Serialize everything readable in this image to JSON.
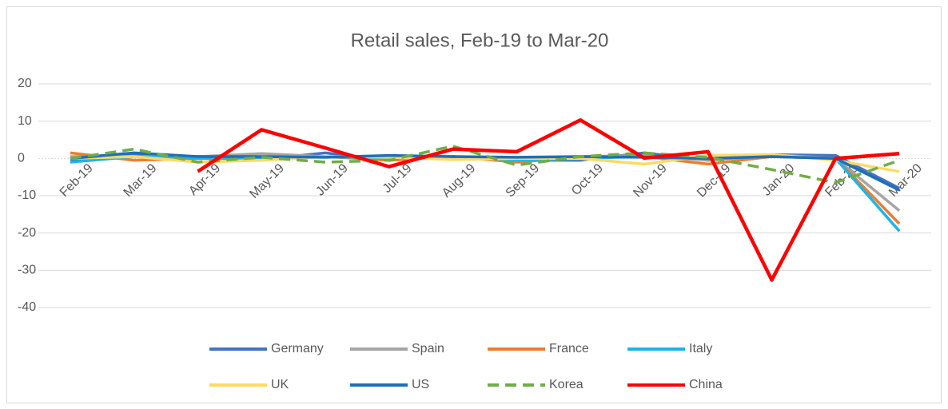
{
  "chart_data": {
    "type": "line",
    "title": "Retail sales, Feb-19 to Mar-20",
    "categories": [
      "Feb-19",
      "Mar-19",
      "Apr-19",
      "May-19",
      "Jun-19",
      "Jul-19",
      "Aug-19",
      "Sep-19",
      "Oct-19",
      "Nov-19",
      "Dec-19",
      "Jan-20",
      "Feb-20",
      "Mar-20"
    ],
    "series": [
      {
        "name": "Germany",
        "color": "#4472c4",
        "values": [
          -0.5,
          0.8,
          0.5,
          -0.3,
          1.5,
          -0.5,
          0.5,
          -0.5,
          -0.5,
          1.5,
          -0.5,
          1,
          0.8,
          -8
        ]
      },
      {
        "name": "Spain",
        "color": "#a5a5a5",
        "values": [
          0.5,
          0.5,
          0.5,
          1.3,
          0.5,
          0.5,
          0.3,
          0,
          0.5,
          0.8,
          -0.5,
          1,
          0,
          -14
        ]
      },
      {
        "name": "France",
        "color": "#ed7d31",
        "values": [
          1.5,
          -0.5,
          0,
          0,
          0.5,
          -0.5,
          0.5,
          -1,
          0.3,
          0.5,
          -1.5,
          0.5,
          0,
          -17.5
        ]
      },
      {
        "name": "Italy",
        "color": "#1cb4ec",
        "values": [
          -1,
          0.5,
          0,
          0,
          0.5,
          0,
          0.5,
          -0.5,
          0,
          0.5,
          0,
          0.5,
          0,
          -19.5
        ]
      },
      {
        "name": "UK",
        "color": "#ffd966",
        "values": [
          0,
          0.5,
          -1,
          -0.5,
          0.5,
          0.3,
          -0.3,
          0,
          0,
          -1.5,
          0.8,
          1,
          -0.5,
          -3.5
        ]
      },
      {
        "name": "US",
        "color": "#1f6fb8",
        "values": [
          0,
          1.5,
          0.5,
          0.5,
          0.3,
          0.8,
          0.5,
          0.3,
          0.5,
          0.3,
          0,
          0.5,
          0,
          -8.5
        ]
      },
      {
        "name": "Korea",
        "color": "#70ad47",
        "dash": true,
        "values": [
          0,
          2.5,
          -1,
          0.3,
          -1,
          -0.5,
          3.3,
          -1.8,
          0.5,
          1.5,
          0.3,
          -3,
          -6.5,
          -0.5
        ]
      },
      {
        "name": "China",
        "color": "#ff0000",
        "values": [
          null,
          null,
          -3.5,
          7.7,
          2.8,
          -2.2,
          2.5,
          1.8,
          10.3,
          0.1,
          1.8,
          -32.6,
          0,
          1.3
        ]
      }
    ],
    "ylim": [
      -40,
      20
    ],
    "yticks": [
      -40,
      -30,
      -20,
      -10,
      0,
      10,
      20
    ],
    "grid": true,
    "legend": "bottom"
  }
}
